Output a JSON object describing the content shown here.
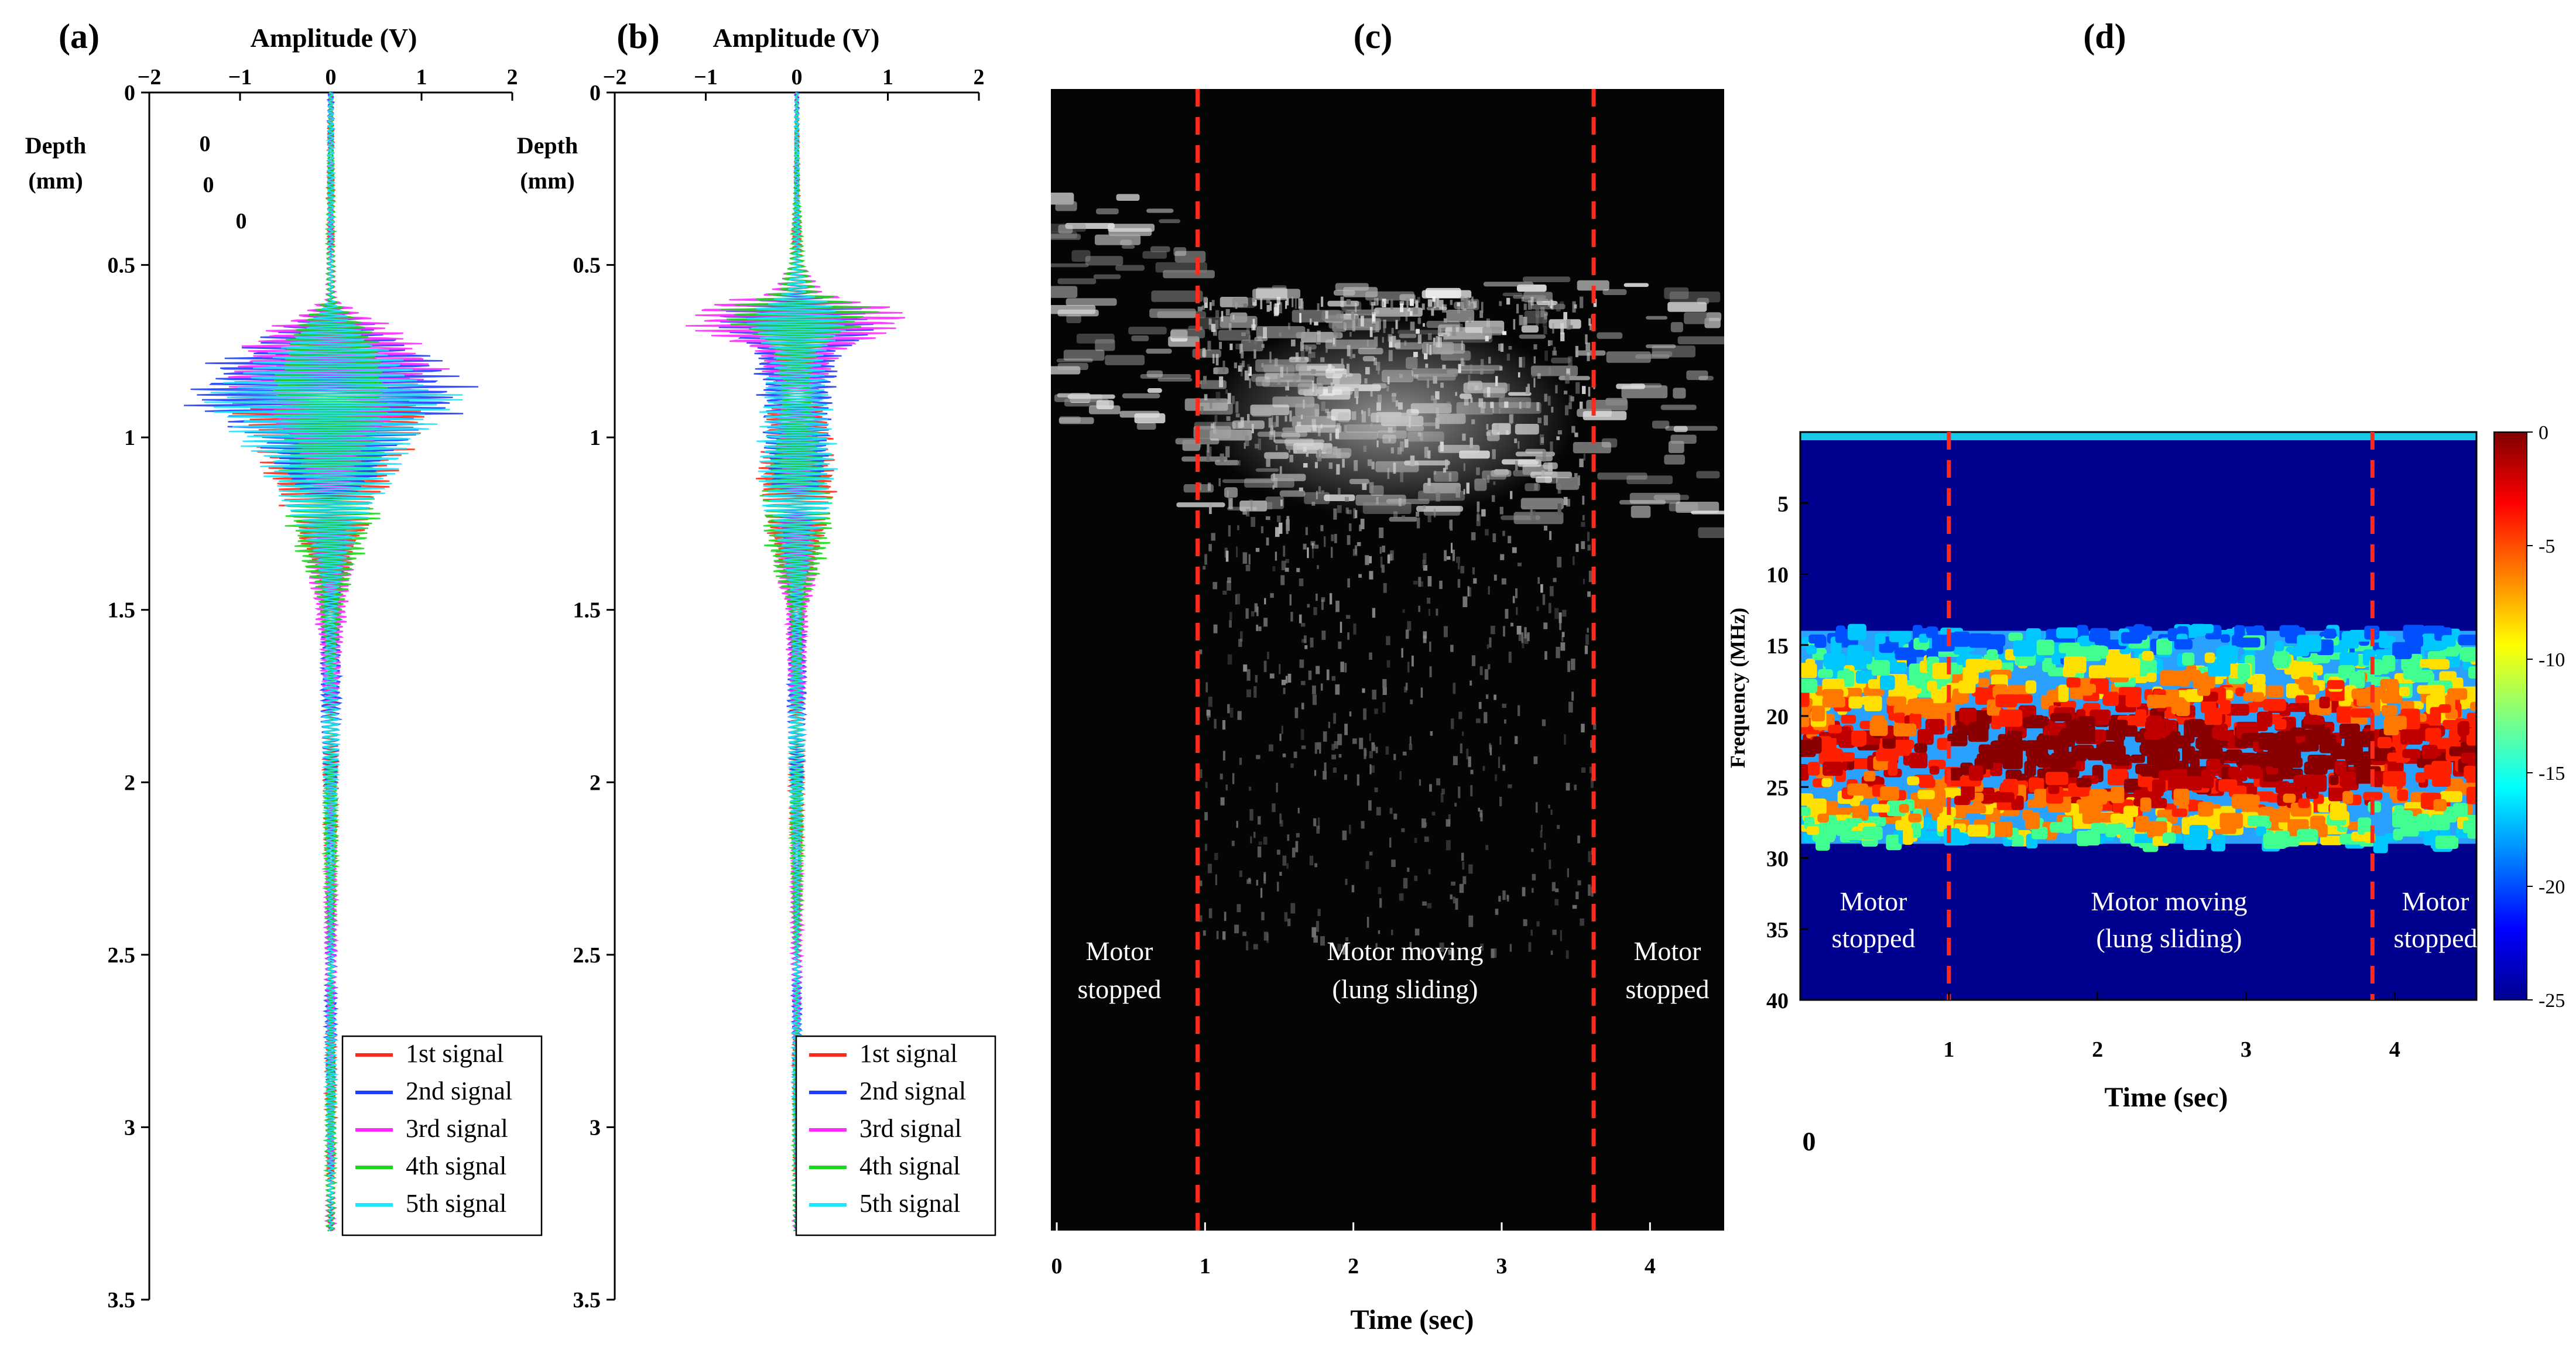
{
  "chart_data": [
    {
      "panel": "(a)",
      "type": "line",
      "orientation": "vertical-depth",
      "xlabel": "Amplitude (V)",
      "ylabel_line1": "Depth",
      "ylabel_line2": "(mm)",
      "xlim": [
        -2,
        2
      ],
      "ylim": [
        0,
        3.5
      ],
      "xticks": [
        "−2",
        "−1",
        "0",
        "1",
        "2"
      ],
      "yticks": [
        "0",
        "0.5",
        "1",
        "1.5",
        "2",
        "2.5",
        "3",
        "3.5"
      ],
      "stray_labels": [
        "0",
        "0",
        "0"
      ],
      "envelope": {
        "depth": [
          0.0,
          0.6,
          0.62,
          0.7,
          0.8,
          0.88,
          0.95,
          1.05,
          1.15,
          1.3,
          1.45,
          1.6,
          2.0,
          2.6,
          3.3
        ],
        "amplitude": [
          0.03,
          0.05,
          0.2,
          0.8,
          1.4,
          1.6,
          1.2,
          0.8,
          0.6,
          0.4,
          0.2,
          0.12,
          0.08,
          0.06,
          0.05
        ]
      },
      "signal_start": 0.0,
      "signal_end": 3.3,
      "series": [
        {
          "name": "1st signal",
          "color": "#ff2a1a"
        },
        {
          "name": "2nd signal",
          "color": "#1f3dff"
        },
        {
          "name": "3rd signal",
          "color": "#ff2aff"
        },
        {
          "name": "4th signal",
          "color": "#19d919"
        },
        {
          "name": "5th signal",
          "color": "#19e6ff"
        }
      ]
    },
    {
      "panel": "(b)",
      "type": "line",
      "orientation": "vertical-depth",
      "xlabel": "Amplitude (V)",
      "ylabel_line1": "Depth",
      "ylabel_line2": "(mm)",
      "xlim": [
        -2,
        2
      ],
      "ylim": [
        0,
        3.5
      ],
      "xticks": [
        "−2",
        "−1",
        "0",
        "1",
        "2"
      ],
      "yticks": [
        "0",
        "0.5",
        "1",
        "1.5",
        "2",
        "2.5",
        "3",
        "3.5"
      ],
      "envelope": {
        "depth": [
          0.0,
          0.3,
          0.5,
          0.58,
          0.63,
          0.68,
          0.75,
          0.85,
          1.0,
          1.2,
          1.35,
          1.5,
          2.0,
          2.6,
          3.3
        ],
        "amplitude": [
          0.02,
          0.03,
          0.08,
          0.3,
          1.2,
          1.2,
          0.5,
          0.4,
          0.4,
          0.4,
          0.3,
          0.12,
          0.08,
          0.05,
          0.04
        ]
      },
      "signal_start": 0.0,
      "signal_end": 3.3,
      "series": [
        {
          "name": "1st signal",
          "color": "#ff2a1a"
        },
        {
          "name": "2nd signal",
          "color": "#1f3dff"
        },
        {
          "name": "3rd signal",
          "color": "#ff2aff"
        },
        {
          "name": "4th signal",
          "color": "#19d919"
        },
        {
          "name": "5th signal",
          "color": "#19e6ff"
        }
      ]
    },
    {
      "panel": "(c)",
      "type": "heatmap",
      "colormap": "grayscale",
      "xlabel": "Time (sec)",
      "xlim": [
        0,
        4.5
      ],
      "xticks": [
        "0",
        "1",
        "2",
        "3",
        "4"
      ],
      "ylim_depth_mm": [
        0,
        3.3
      ],
      "motion_boundaries_sec": [
        0.95,
        3.62
      ],
      "boundary_color": "#ff2a1a",
      "annotations": [
        {
          "text1": "Motor",
          "text2": "stopped"
        },
        {
          "text1": "Motor moving",
          "text2": "(lung sliding)"
        },
        {
          "text1": "Motor",
          "text2": "stopped"
        }
      ]
    },
    {
      "panel": "(d)",
      "type": "heatmap",
      "colormap": "jet",
      "xlabel": "Time (sec)",
      "ylabel": "Frequency (MHz)",
      "xlim": [
        0,
        4.55
      ],
      "ylim": [
        0,
        40
      ],
      "xticks": [
        "1",
        "2",
        "3",
        "4"
      ],
      "yticks": [
        "5",
        "10",
        "15",
        "20",
        "25",
        "30",
        "35",
        "40"
      ],
      "stray_label": "0",
      "motion_boundaries_sec": [
        1.0,
        3.85
      ],
      "boundary_color": "#ff2a1a",
      "band_mhz": [
        14,
        29
      ],
      "colorbar_ticks": [
        "0",
        "-5",
        "-10",
        "-15",
        "-20",
        "-25"
      ],
      "colorbar_range_db": [
        -25,
        0
      ],
      "annotations": [
        {
          "text1": "Motor",
          "text2": "stopped"
        },
        {
          "text1": "Motor moving",
          "text2": "(lung sliding)"
        },
        {
          "text1": "Motor",
          "text2": "stopped"
        }
      ]
    }
  ]
}
